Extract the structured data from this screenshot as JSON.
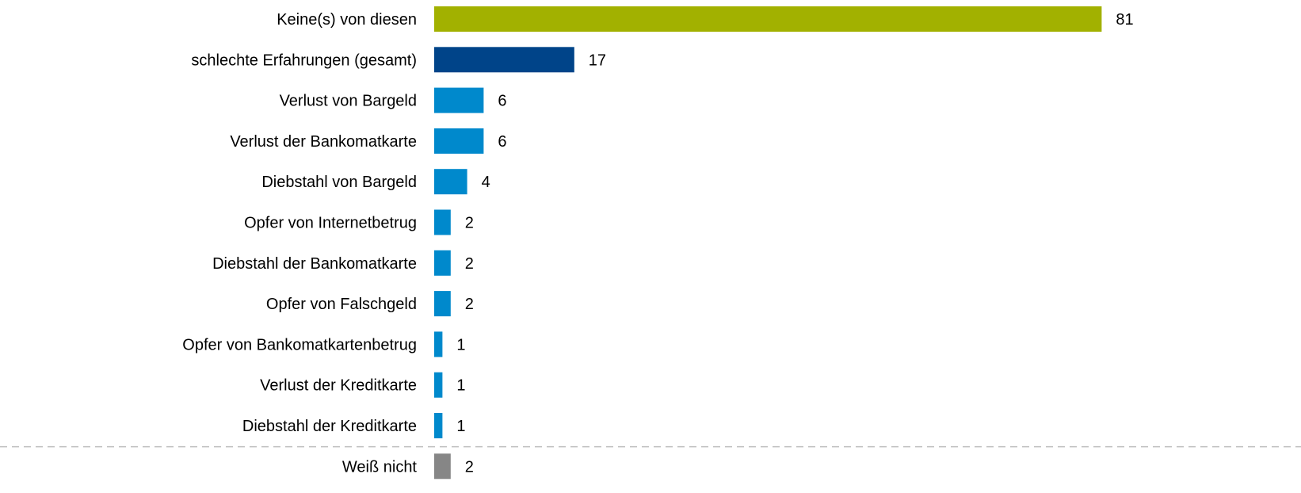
{
  "chart_data": {
    "type": "bar",
    "orientation": "horizontal",
    "categories": [
      "Keine(s) von diesen",
      "schlechte Erfahrungen (gesamt)",
      "Verlust von Bargeld",
      "Verlust der Bankomatkarte",
      "Diebstahl von Bargeld",
      "Opfer von Internetbetrug",
      "Diebstahl der Bankomatkarte",
      "Opfer von Falschgeld",
      "Opfer von Bankomatkartenbetrug",
      "Verlust der Kreditkarte",
      "Diebstahl der Kreditkarte",
      "Weiß nicht"
    ],
    "values": [
      81,
      17,
      6,
      6,
      4,
      2,
      2,
      2,
      1,
      1,
      1,
      2
    ],
    "value_labels": [
      "81",
      "17",
      "6",
      "6",
      "4",
      "2",
      "2",
      "2",
      "1",
      "1",
      "1",
      "2"
    ],
    "bar_colors": [
      "#a2b100",
      "#004489",
      "#0089cc",
      "#0089cc",
      "#0089cc",
      "#0089cc",
      "#0089cc",
      "#0089cc",
      "#0089cc",
      "#0089cc",
      "#0089cc",
      "#868686"
    ],
    "separator_line": {
      "style": "dashed",
      "color": "#bfbfbf",
      "between": [
        "Diebstahl der Kreditkarte",
        "Weiß nicht"
      ]
    },
    "xlim": [
      0,
      81
    ],
    "axes_visible": false,
    "grid": false,
    "legend": "none",
    "title": "",
    "xlabel": "",
    "ylabel": ""
  }
}
